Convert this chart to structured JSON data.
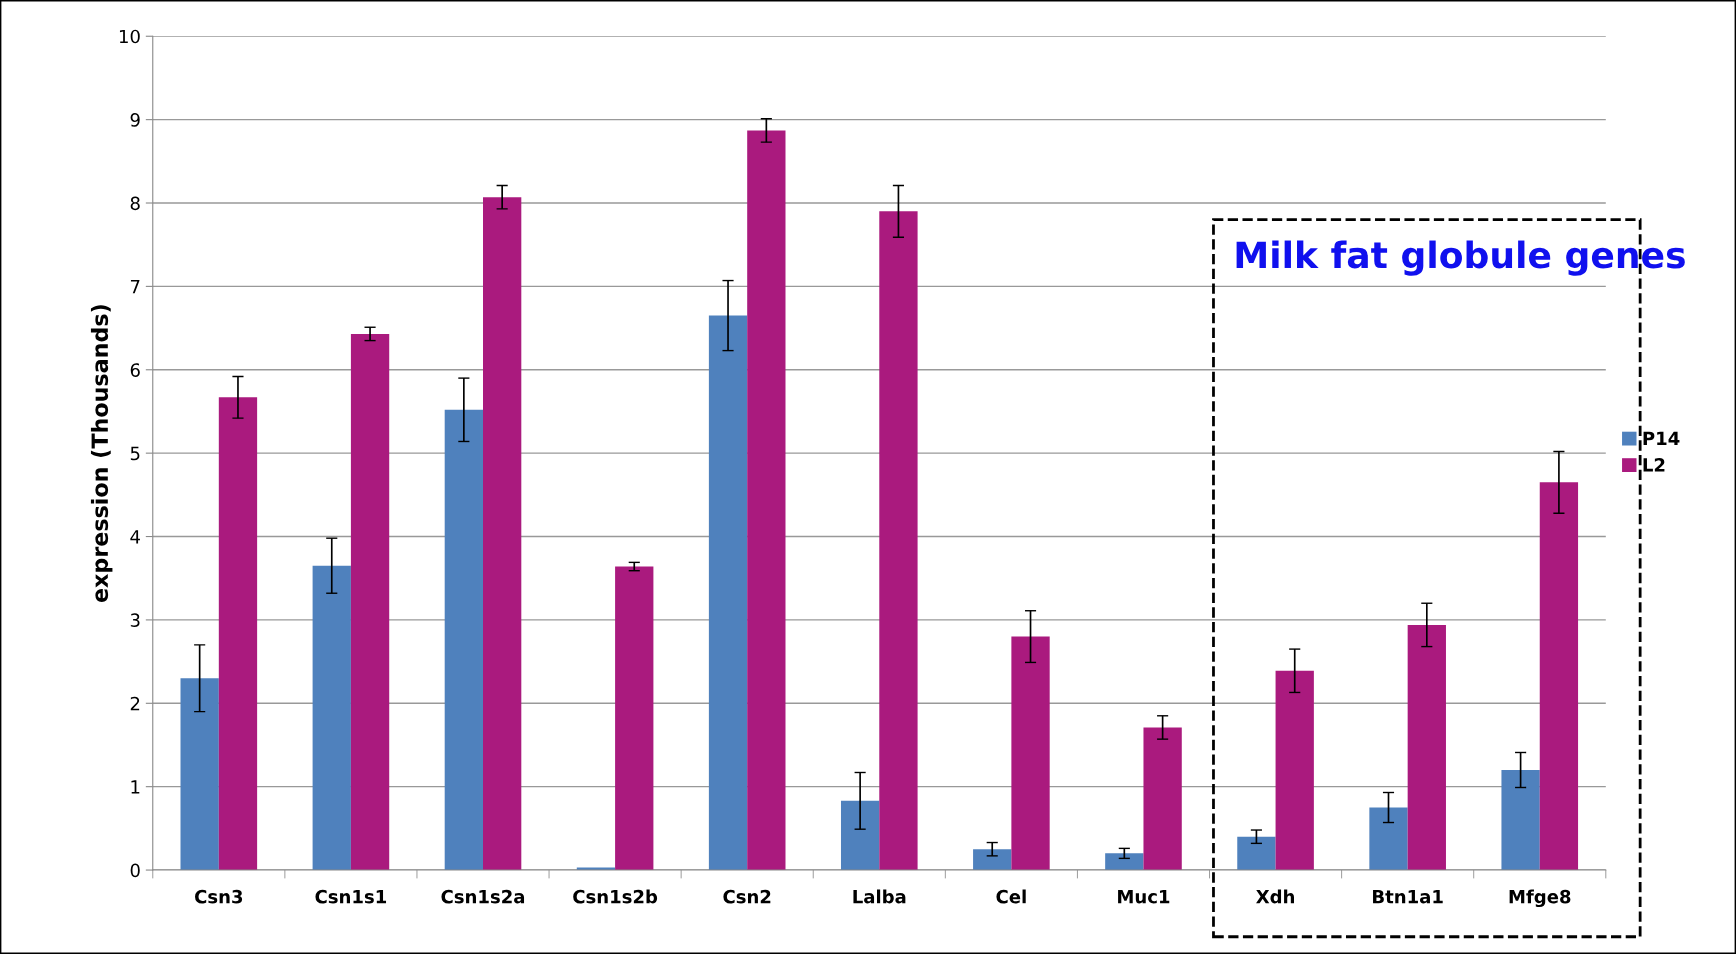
{
  "chart_data": {
    "type": "bar",
    "ylabel": "expression (Thousands)",
    "categories": [
      "Csn3",
      "Csn1s1",
      "Csn1s2a",
      "Csn1s2b",
      "Csn2",
      "Lalba",
      "Cel",
      "Muc1",
      "Xdh",
      "Btn1a1",
      "Mfge8"
    ],
    "series": [
      {
        "name": "P14",
        "color": "#4f81bd",
        "values": [
          2.3,
          3.65,
          5.52,
          0.03,
          6.65,
          0.83,
          0.25,
          0.2,
          0.4,
          0.75,
          1.2
        ],
        "errors": [
          0.4,
          0.33,
          0.38,
          null,
          0.42,
          0.34,
          0.08,
          0.06,
          0.08,
          0.18,
          0.21
        ]
      },
      {
        "name": "L2",
        "color": "#aa1a7e",
        "values": [
          5.67,
          6.43,
          8.07,
          3.64,
          8.87,
          7.9,
          2.8,
          1.71,
          2.39,
          2.94,
          4.65
        ],
        "errors": [
          0.25,
          0.08,
          0.14,
          0.05,
          0.14,
          0.31,
          0.31,
          0.14,
          0.26,
          0.26,
          0.37
        ]
      }
    ],
    "ylim": [
      0,
      10
    ],
    "yticks": [
      0,
      1,
      2,
      3,
      4,
      5,
      6,
      7,
      8,
      9,
      10
    ],
    "grid": "y",
    "legend": "right",
    "annotations": [
      "Milk fat globule genes"
    ]
  }
}
